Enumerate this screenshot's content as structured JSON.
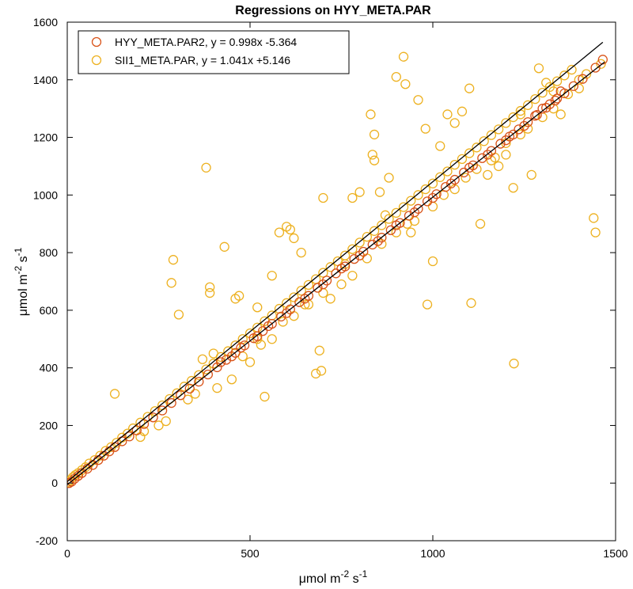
{
  "chart_data": {
    "type": "scatter",
    "title": "Regressions on HYY_META.PAR",
    "xlabel": {
      "base": "μmol m",
      "exp1": "-2",
      "mid": " s",
      "exp2": "-1"
    },
    "ylabel": {
      "base": "μmol m",
      "exp1": "-2",
      "mid": " s",
      "exp2": "-1"
    },
    "xlim": [
      0,
      1500
    ],
    "ylim": [
      -200,
      1600
    ],
    "xticks": [
      0,
      500,
      1000,
      1500
    ],
    "yticks": [
      -200,
      0,
      200,
      400,
      600,
      800,
      1000,
      1200,
      1400,
      1600
    ],
    "xtick_labels": [
      "0",
      "500",
      "1000",
      "1500"
    ],
    "ytick_labels": [
      "-200",
      "0",
      "200",
      "400",
      "600",
      "800",
      "1000",
      "1200",
      "1400",
      "1600"
    ],
    "legend_position": "top-left",
    "grid": false,
    "series": [
      {
        "name": "HYY_META.PAR2, y = 0.998x -5.364",
        "color": "#d95319",
        "marker": "open-circle",
        "fit": {
          "slope": 0.998,
          "intercept": -5.364,
          "x_range": [
            0,
            1470
          ]
        },
        "points": [
          [
            5,
            0
          ],
          [
            12,
            5
          ],
          [
            20,
            15
          ],
          [
            30,
            25
          ],
          [
            40,
            35
          ],
          [
            55,
            50
          ],
          [
            70,
            63
          ],
          [
            85,
            80
          ],
          [
            100,
            95
          ],
          [
            115,
            110
          ],
          [
            130,
            125
          ],
          [
            150,
            145
          ],
          [
            170,
            162
          ],
          [
            190,
            183
          ],
          [
            210,
            205
          ],
          [
            235,
            228
          ],
          [
            260,
            252
          ],
          [
            285,
            278
          ],
          [
            310,
            305
          ],
          [
            335,
            328
          ],
          [
            360,
            352
          ],
          [
            385,
            377
          ],
          [
            410,
            402
          ],
          [
            435,
            428
          ],
          [
            460,
            452
          ],
          [
            485,
            478
          ],
          [
            510,
            503
          ],
          [
            535,
            528
          ],
          [
            560,
            553
          ],
          [
            585,
            578
          ],
          [
            610,
            603
          ],
          [
            635,
            628
          ],
          [
            660,
            650
          ],
          [
            685,
            678
          ],
          [
            710,
            703
          ],
          [
            735,
            728
          ],
          [
            760,
            752
          ],
          [
            785,
            778
          ],
          [
            810,
            803
          ],
          [
            835,
            828
          ],
          [
            860,
            852
          ],
          [
            885,
            878
          ],
          [
            910,
            903
          ],
          [
            935,
            928
          ],
          [
            960,
            952
          ],
          [
            985,
            978
          ],
          [
            1010,
            1003
          ],
          [
            1035,
            1028
          ],
          [
            1060,
            1053
          ],
          [
            1085,
            1078
          ],
          [
            1110,
            1103
          ],
          [
            1135,
            1128
          ],
          [
            1160,
            1153
          ],
          [
            1185,
            1178
          ],
          [
            1210,
            1203
          ],
          [
            1235,
            1228
          ],
          [
            1260,
            1253
          ],
          [
            1285,
            1278
          ],
          [
            1310,
            1303
          ],
          [
            1335,
            1328
          ],
          [
            1360,
            1353
          ],
          [
            1385,
            1378
          ],
          [
            1410,
            1403
          ],
          [
            1445,
            1442
          ],
          [
            1465,
            1470
          ],
          [
            1200,
            1190
          ],
          [
            1220,
            1210
          ],
          [
            1250,
            1240
          ],
          [
            1280,
            1275
          ],
          [
            1300,
            1300
          ],
          [
            1320,
            1315
          ],
          [
            1340,
            1335
          ],
          [
            1350,
            1360
          ],
          [
            420,
            420
          ],
          [
            450,
            440
          ],
          [
            475,
            470
          ],
          [
            520,
            510
          ],
          [
            550,
            545
          ],
          [
            600,
            590
          ],
          [
            650,
            640
          ],
          [
            700,
            690
          ],
          [
            750,
            745
          ],
          [
            800,
            790
          ],
          [
            850,
            840
          ],
          [
            900,
            895
          ],
          [
            950,
            940
          ],
          [
            1000,
            990
          ],
          [
            1050,
            1040
          ],
          [
            1100,
            1095
          ],
          [
            1150,
            1140
          ]
        ]
      },
      {
        "name": "SII1_META.PAR, y = 1.041x +5.146",
        "color": "#edb120",
        "marker": "open-circle",
        "fit": {
          "slope": 1.041,
          "intercept": 5.146,
          "x_range": [
            0,
            1465
          ]
        },
        "points": [
          [
            3,
            4
          ],
          [
            8,
            10
          ],
          [
            15,
            20
          ],
          [
            22,
            28
          ],
          [
            30,
            35
          ],
          [
            40,
            45
          ],
          [
            50,
            55
          ],
          [
            60,
            68
          ],
          [
            75,
            80
          ],
          [
            90,
            95
          ],
          [
            105,
            112
          ],
          [
            120,
            125
          ],
          [
            135,
            140
          ],
          [
            150,
            158
          ],
          [
            165,
            172
          ],
          [
            180,
            190
          ],
          [
            200,
            210
          ],
          [
            220,
            230
          ],
          [
            240,
            250
          ],
          [
            260,
            270
          ],
          [
            280,
            292
          ],
          [
            300,
            312
          ],
          [
            320,
            335
          ],
          [
            340,
            355
          ],
          [
            360,
            375
          ],
          [
            380,
            395
          ],
          [
            400,
            415
          ],
          [
            420,
            438
          ],
          [
            440,
            458
          ],
          [
            460,
            478
          ],
          [
            480,
            500
          ],
          [
            500,
            520
          ],
          [
            520,
            540
          ],
          [
            540,
            562
          ],
          [
            560,
            582
          ],
          [
            580,
            605
          ],
          [
            600,
            625
          ],
          [
            620,
            645
          ],
          [
            640,
            668
          ],
          [
            660,
            688
          ],
          [
            680,
            708
          ],
          [
            700,
            730
          ],
          [
            720,
            750
          ],
          [
            740,
            770
          ],
          [
            760,
            790
          ],
          [
            780,
            812
          ],
          [
            800,
            835
          ],
          [
            820,
            855
          ],
          [
            840,
            875
          ],
          [
            860,
            895
          ],
          [
            880,
            917
          ],
          [
            900,
            938
          ],
          [
            920,
            958
          ],
          [
            940,
            980
          ],
          [
            960,
            1000
          ],
          [
            980,
            1020
          ],
          [
            1000,
            1040
          ],
          [
            1020,
            1062
          ],
          [
            1040,
            1082
          ],
          [
            1060,
            1105
          ],
          [
            1080,
            1125
          ],
          [
            1100,
            1145
          ],
          [
            1120,
            1165
          ],
          [
            1140,
            1187
          ],
          [
            1160,
            1208
          ],
          [
            1180,
            1228
          ],
          [
            1200,
            1250
          ],
          [
            1220,
            1270
          ],
          [
            1240,
            1292
          ],
          [
            1260,
            1312
          ],
          [
            1280,
            1333
          ],
          [
            1300,
            1355
          ],
          [
            1320,
            1375
          ],
          [
            1340,
            1395
          ],
          [
            1360,
            1415
          ],
          [
            1380,
            1435
          ],
          [
            1400,
            1400
          ],
          [
            1420,
            1420
          ],
          [
            1460,
            1455
          ],
          [
            130,
            310
          ],
          [
            290,
            775
          ],
          [
            285,
            695
          ],
          [
            305,
            585
          ],
          [
            380,
            1095
          ],
          [
            390,
            660
          ],
          [
            390,
            680
          ],
          [
            430,
            820
          ],
          [
            470,
            650
          ],
          [
            460,
            640
          ],
          [
            520,
            500
          ],
          [
            540,
            300
          ],
          [
            520,
            610
          ],
          [
            560,
            720
          ],
          [
            580,
            870
          ],
          [
            600,
            890
          ],
          [
            610,
            880
          ],
          [
            620,
            850
          ],
          [
            640,
            800
          ],
          [
            650,
            620
          ],
          [
            680,
            380
          ],
          [
            690,
            460
          ],
          [
            695,
            390
          ],
          [
            700,
            990
          ],
          [
            760,
            760
          ],
          [
            780,
            990
          ],
          [
            800,
            1010
          ],
          [
            830,
            1280
          ],
          [
            840,
            1210
          ],
          [
            835,
            1140
          ],
          [
            840,
            1120
          ],
          [
            855,
            1010
          ],
          [
            870,
            930
          ],
          [
            880,
            1060
          ],
          [
            900,
            1410
          ],
          [
            920,
            1480
          ],
          [
            925,
            1385
          ],
          [
            940,
            870
          ],
          [
            960,
            1330
          ],
          [
            980,
            1230
          ],
          [
            985,
            620
          ],
          [
            1000,
            770
          ],
          [
            1020,
            1170
          ],
          [
            1040,
            1280
          ],
          [
            1060,
            1250
          ],
          [
            1080,
            1290
          ],
          [
            1100,
            1370
          ],
          [
            1105,
            625
          ],
          [
            1130,
            900
          ],
          [
            1150,
            1070
          ],
          [
            1170,
            1130
          ],
          [
            1180,
            1100
          ],
          [
            1200,
            1140
          ],
          [
            1220,
            1025
          ],
          [
            1222,
            415
          ],
          [
            1240,
            1280
          ],
          [
            1270,
            1070
          ],
          [
            1290,
            1440
          ],
          [
            1310,
            1390
          ],
          [
            1330,
            1360
          ],
          [
            1350,
            1280
          ],
          [
            1440,
            920
          ],
          [
            1445,
            870
          ],
          [
            200,
            160
          ],
          [
            210,
            180
          ],
          [
            250,
            200
          ],
          [
            270,
            215
          ],
          [
            330,
            290
          ],
          [
            350,
            310
          ],
          [
            370,
            430
          ],
          [
            400,
            450
          ],
          [
            410,
            330
          ],
          [
            450,
            360
          ],
          [
            480,
            440
          ],
          [
            500,
            420
          ],
          [
            530,
            480
          ],
          [
            560,
            500
          ],
          [
            590,
            560
          ],
          [
            620,
            580
          ],
          [
            660,
            620
          ],
          [
            700,
            660
          ],
          [
            720,
            640
          ],
          [
            750,
            690
          ],
          [
            780,
            720
          ],
          [
            820,
            780
          ],
          [
            860,
            830
          ],
          [
            900,
            870
          ],
          [
            930,
            900
          ],
          [
            950,
            910
          ],
          [
            1000,
            960
          ],
          [
            1030,
            1000
          ],
          [
            1060,
            1020
          ],
          [
            1090,
            1060
          ],
          [
            1120,
            1090
          ],
          [
            1160,
            1120
          ],
          [
            1200,
            1180
          ],
          [
            1240,
            1210
          ],
          [
            1260,
            1230
          ],
          [
            1300,
            1270
          ],
          [
            1330,
            1300
          ],
          [
            1370,
            1350
          ],
          [
            1400,
            1370
          ]
        ]
      }
    ]
  }
}
